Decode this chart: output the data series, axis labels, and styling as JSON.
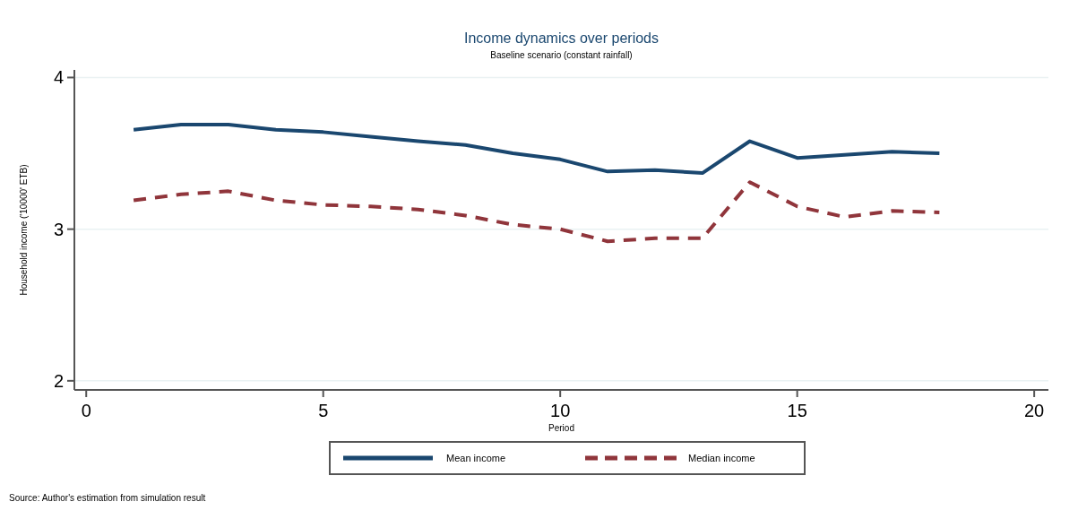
{
  "chart_data": {
    "type": "line",
    "title": "Income dynamics over periods",
    "subtitle": "Baseline scenario (constant rainfall)",
    "xlabel": "Period",
    "ylabel": "Household income ('10000' ETB)",
    "annotations": [
      "Source:  Author's estimation from simulation result"
    ],
    "x": [
      1,
      2,
      3,
      4,
      5,
      6,
      7,
      8,
      9,
      10,
      11,
      12,
      13,
      14,
      15,
      16,
      17,
      18
    ],
    "series": [
      {
        "name": "Mean income",
        "color": "#1a476f",
        "line_style": "solid",
        "values": [
          3.655,
          3.69,
          3.69,
          3.655,
          3.64,
          3.61,
          3.58,
          3.555,
          3.5,
          3.46,
          3.38,
          3.39,
          3.37,
          3.58,
          3.47,
          3.49,
          3.51,
          3.5
        ]
      },
      {
        "name": "Median income",
        "color": "#90353b",
        "line_style": "dashed",
        "values": [
          3.19,
          3.23,
          3.25,
          3.19,
          3.16,
          3.15,
          3.13,
          3.09,
          3.03,
          3.0,
          2.92,
          2.94,
          2.94,
          3.31,
          3.15,
          3.08,
          3.12,
          3.11
        ]
      }
    ],
    "xlim": [
      -0.25,
      20.3
    ],
    "ylim": [
      1.94,
      4.05
    ],
    "xticks": [
      0,
      5,
      10,
      15,
      20
    ],
    "yticks": [
      2,
      3,
      4
    ],
    "grid": "y",
    "legend": "bottom",
    "marker": "none"
  }
}
